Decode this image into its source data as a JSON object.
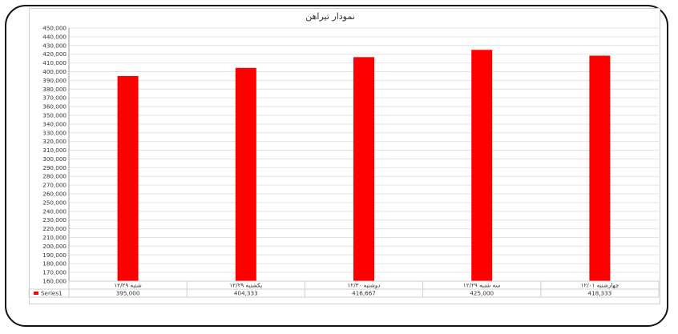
{
  "chart_data": {
    "type": "bar",
    "title": "نمودار تیراهن",
    "categories": [
      "شنبه ۱۲/۲۹",
      "یکشنبه ۱۲/۲۹",
      "دوشنبه ۱۲/۳۰",
      "سه شنبه ۱۲/۲۹",
      "چهارشنبه ۱۲/۰۱"
    ],
    "series": [
      {
        "name": "Series1",
        "values": [
          395000,
          404333,
          416667,
          425000,
          418333
        ]
      }
    ],
    "value_labels": [
      "395,000",
      "404,333",
      "416,667",
      "425,000",
      "418,333"
    ],
    "ylim": [
      160000,
      450000
    ],
    "ytick_step": 10000,
    "grid": true,
    "legend": "data-table-left",
    "colors": {
      "bar": "#ff0000",
      "grid": "#e2e2e2",
      "axis": "#9a9a9a"
    }
  }
}
